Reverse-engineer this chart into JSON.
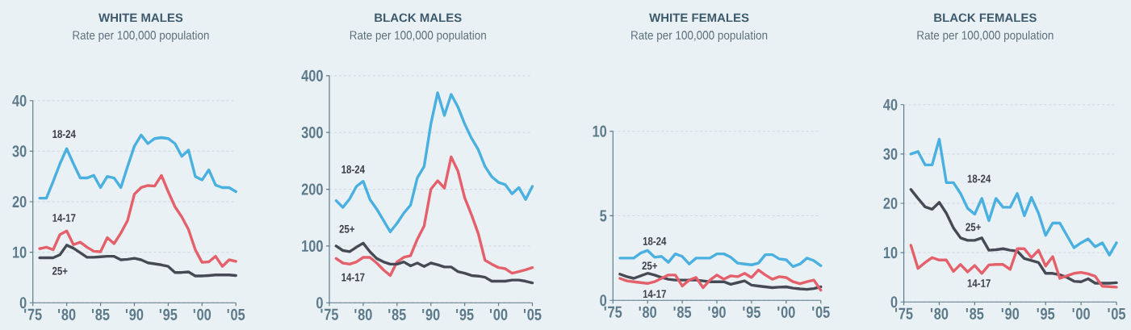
{
  "chart_data": [
    {
      "type": "line",
      "title": "WHITE MALES",
      "subtitle": "Rate per 100,000 population",
      "grid": "y",
      "x": [
        1976,
        1977,
        1978,
        1979,
        1980,
        1981,
        1982,
        1983,
        1984,
        1985,
        1986,
        1987,
        1988,
        1989,
        1990,
        1991,
        1992,
        1993,
        1994,
        1995,
        1996,
        1997,
        1998,
        1999,
        2000,
        2001,
        2002,
        2003,
        2004,
        2005
      ],
      "xlim": [
        1975,
        2005
      ],
      "xticks": [
        {
          "value": 1975,
          "label": "'75"
        },
        {
          "value": 1980,
          "label": "'80"
        },
        {
          "value": 1985,
          "label": "'85"
        },
        {
          "value": 1990,
          "label": "'90"
        },
        {
          "value": 1995,
          "label": "'95"
        },
        {
          "value": 2000,
          "label": "'00"
        },
        {
          "value": 2005,
          "label": "'05"
        }
      ],
      "ylim": [
        0,
        40
      ],
      "yticks": [
        0,
        10,
        20,
        30,
        40
      ],
      "series": [
        {
          "name": "18-24",
          "color": "#4ab0e0",
          "values": [
            20.7,
            20.7,
            24,
            27.5,
            30.5,
            27.5,
            24.7,
            24.7,
            25.2,
            22.8,
            25,
            24.7,
            22.8,
            27,
            31,
            33.2,
            31.5,
            32.5,
            32.7,
            32.5,
            31.5,
            29,
            30.2,
            25,
            24.3,
            26.3,
            23.3,
            22.8,
            22.8,
            22
          ]
        },
        {
          "name": "14-17",
          "color": "#e4606a",
          "values": [
            10.7,
            11,
            10.5,
            13.5,
            14.2,
            11.5,
            12,
            11,
            10.2,
            10.1,
            12.9,
            11.7,
            13.8,
            16.3,
            21.5,
            22.8,
            23.2,
            23.1,
            25.2,
            22,
            19,
            17,
            14.5,
            10.5,
            8,
            8.1,
            9.2,
            7.2,
            8.5,
            8.2
          ]
        },
        {
          "name": "25+",
          "color": "#464a55",
          "values": [
            8.9,
            8.9,
            8.9,
            9.5,
            11.4,
            10.8,
            9.9,
            9,
            9,
            9.1,
            9.2,
            9.2,
            8.5,
            8.6,
            8.8,
            8.5,
            7.9,
            7.7,
            7.5,
            7.2,
            6,
            6,
            6.1,
            5.3,
            5.3,
            5.4,
            5.5,
            5.5,
            5.5,
            5.4
          ]
        }
      ]
    },
    {
      "type": "line",
      "title": "BLACK MALES",
      "subtitle": "Rate per 100,000 population",
      "grid": "y",
      "x": [
        1976,
        1977,
        1978,
        1979,
        1980,
        1981,
        1982,
        1983,
        1984,
        1985,
        1986,
        1987,
        1988,
        1989,
        1990,
        1991,
        1992,
        1993,
        1994,
        1995,
        1996,
        1997,
        1998,
        1999,
        2000,
        2001,
        2002,
        2003,
        2004,
        2005
      ],
      "xlim": [
        1975,
        2005
      ],
      "xticks": [
        {
          "value": 1975,
          "label": "'75"
        },
        {
          "value": 1980,
          "label": "'80"
        },
        {
          "value": 1985,
          "label": "'85"
        },
        {
          "value": 1990,
          "label": "'90"
        },
        {
          "value": 1995,
          "label": "'95"
        },
        {
          "value": 2000,
          "label": "'00"
        },
        {
          "value": 2005,
          "label": "'05"
        }
      ],
      "ylim": [
        0,
        400
      ],
      "yticks": [
        0,
        100,
        200,
        300,
        400
      ],
      "series": [
        {
          "name": "18-24",
          "color": "#4ab0e0",
          "values": [
            180,
            168,
            183,
            205,
            214,
            182,
            165,
            145,
            125,
            140,
            158,
            172,
            220,
            240,
            315,
            370,
            330,
            367,
            345,
            315,
            290,
            270,
            240,
            222,
            212,
            208,
            192,
            203,
            182,
            205
          ]
        },
        {
          "name": "14-17",
          "color": "#e4606a",
          "values": [
            78,
            70,
            68,
            72,
            80,
            80,
            70,
            58,
            48,
            72,
            80,
            83,
            112,
            135,
            200,
            215,
            202,
            257,
            232,
            185,
            155,
            122,
            75,
            68,
            62,
            60,
            52,
            55,
            58,
            62
          ]
        },
        {
          "name": "25+",
          "color": "#464a55",
          "values": [
            100,
            92,
            90,
            98,
            105,
            90,
            78,
            72,
            68,
            68,
            72,
            65,
            70,
            64,
            70,
            67,
            63,
            63,
            55,
            52,
            48,
            47,
            45,
            38,
            38,
            38,
            40,
            40,
            38,
            35
          ]
        }
      ]
    },
    {
      "type": "line",
      "title": "WHITE FEMALES",
      "subtitle": "Rate per 100,000 population",
      "grid": "y",
      "x": [
        1976,
        1977,
        1978,
        1979,
        1980,
        1981,
        1982,
        1983,
        1984,
        1985,
        1986,
        1987,
        1988,
        1989,
        1990,
        1991,
        1992,
        1993,
        1994,
        1995,
        1996,
        1997,
        1998,
        1999,
        2000,
        2001,
        2002,
        2003,
        2004,
        2005
      ],
      "xlim": [
        1975,
        2005
      ],
      "xticks": [
        {
          "value": 1975,
          "label": "'75"
        },
        {
          "value": 1980,
          "label": "'80"
        },
        {
          "value": 1985,
          "label": "'85"
        },
        {
          "value": 1990,
          "label": "'90"
        },
        {
          "value": 1995,
          "label": "'95"
        },
        {
          "value": 2000,
          "label": "'00"
        },
        {
          "value": 2005,
          "label": "'05"
        }
      ],
      "ylim": [
        0,
        10
      ],
      "yticks": [
        0,
        5,
        10
      ],
      "series": [
        {
          "name": "18-24",
          "color": "#4ab0e0",
          "values": [
            2.5,
            2.5,
            2.5,
            2.8,
            2.95,
            2.55,
            2.6,
            2.25,
            2.75,
            2.6,
            2.15,
            2.5,
            2.5,
            2.5,
            2.75,
            2.75,
            2.55,
            2.2,
            2.15,
            2.1,
            2.2,
            2.7,
            2.7,
            2.45,
            2.4,
            2.0,
            2.15,
            2.5,
            2.35,
            2.05
          ]
        },
        {
          "name": "25+",
          "color": "#464a55",
          "values": [
            1.55,
            1.4,
            1.3,
            1.45,
            1.6,
            1.5,
            1.35,
            1.25,
            1.2,
            1.2,
            1.2,
            1.2,
            1.15,
            1.1,
            1.1,
            1.1,
            0.95,
            1.05,
            1.15,
            0.9,
            0.85,
            0.8,
            0.75,
            0.78,
            0.8,
            0.72,
            0.68,
            0.65,
            0.7,
            0.8
          ]
        },
        {
          "name": "14-17",
          "color": "#e4606a",
          "values": [
            1.3,
            1.15,
            1.1,
            1.05,
            1.0,
            1.1,
            1.3,
            1.5,
            1.5,
            0.85,
            1.2,
            1.35,
            0.75,
            1.2,
            1.5,
            1.25,
            1.45,
            1.4,
            1.6,
            1.35,
            1.8,
            1.5,
            1.25,
            1.4,
            1.35,
            1.1,
            0.98,
            1.1,
            1.2,
            0.6
          ]
        }
      ]
    },
    {
      "type": "line",
      "title": "BLACK FEMALES",
      "subtitle": "Rate per 100,000 population",
      "grid": "y",
      "x": [
        1976,
        1977,
        1978,
        1979,
        1980,
        1981,
        1982,
        1983,
        1984,
        1985,
        1986,
        1987,
        1988,
        1989,
        1990,
        1991,
        1992,
        1993,
        1994,
        1995,
        1996,
        1997,
        1998,
        1999,
        2000,
        2001,
        2002,
        2003,
        2004,
        2005
      ],
      "xlim": [
        1975,
        2005
      ],
      "xticks": [
        {
          "value": 1975,
          "label": "'75"
        },
        {
          "value": 1980,
          "label": "'80"
        },
        {
          "value": 1985,
          "label": "'85"
        },
        {
          "value": 1990,
          "label": "'90"
        },
        {
          "value": 1995,
          "label": "'95"
        },
        {
          "value": 2000,
          "label": "'00"
        },
        {
          "value": 2005,
          "label": "'05"
        }
      ],
      "ylim": [
        0,
        40
      ],
      "yticks": [
        0,
        10,
        20,
        30,
        40
      ],
      "series": [
        {
          "name": "18-24",
          "color": "#4ab0e0",
          "values": [
            30,
            30.5,
            27.8,
            27.8,
            33,
            24.2,
            24.2,
            22,
            19,
            17.8,
            21,
            16.5,
            21,
            19.2,
            19.2,
            22,
            17.5,
            21.2,
            18,
            13.5,
            16,
            16,
            13.5,
            11,
            12,
            12.8,
            11.2,
            12,
            9.5,
            12
          ]
        },
        {
          "name": "25+",
          "color": "#464a55",
          "values": [
            22.8,
            21,
            19.3,
            18.8,
            20.2,
            18,
            15,
            13,
            12.5,
            12.5,
            13,
            10.5,
            10.6,
            10.8,
            10.5,
            10.3,
            8.8,
            8.4,
            8,
            5.8,
            5.8,
            5.5,
            5,
            4.2,
            4.1,
            4.7,
            3.8,
            3.8,
            3.8,
            3.9
          ]
        },
        {
          "name": "14-17",
          "color": "#e4606a",
          "values": [
            11.5,
            6.8,
            8,
            9,
            8.5,
            8.5,
            6.2,
            7.6,
            6.1,
            7.4,
            5.8,
            7.5,
            7.6,
            7.6,
            6.6,
            10.8,
            10.8,
            9,
            10.5,
            7.3,
            9.2,
            4.8,
            5.3,
            5.8,
            6,
            5.7,
            5.2,
            3.2,
            3.1,
            3.0
          ]
        }
      ]
    }
  ]
}
